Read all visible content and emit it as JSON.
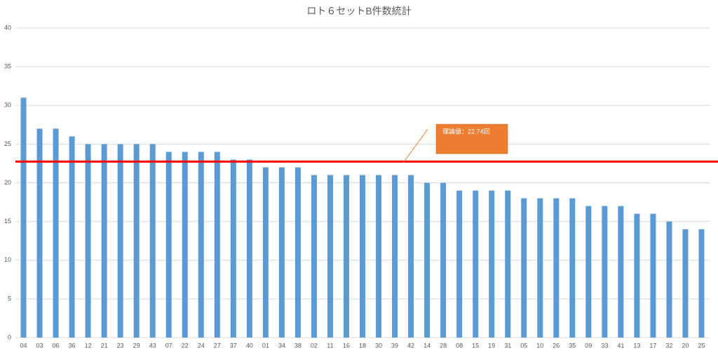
{
  "chart_data": {
    "type": "bar",
    "title": "ロト６セットB件数統計",
    "categories": [
      "04",
      "03",
      "06",
      "36",
      "12",
      "21",
      "23",
      "29",
      "43",
      "07",
      "22",
      "24",
      "27",
      "37",
      "40",
      "01",
      "34",
      "38",
      "02",
      "11",
      "16",
      "18",
      "30",
      "39",
      "42",
      "14",
      "28",
      "08",
      "15",
      "19",
      "31",
      "05",
      "10",
      "26",
      "35",
      "09",
      "33",
      "41",
      "13",
      "17",
      "32",
      "20",
      "25"
    ],
    "values": [
      31,
      27,
      27,
      26,
      25,
      25,
      25,
      25,
      25,
      24,
      24,
      24,
      24,
      23,
      23,
      22,
      22,
      22,
      21,
      21,
      21,
      21,
      21,
      21,
      21,
      20,
      20,
      19,
      19,
      19,
      19,
      18,
      18,
      18,
      18,
      17,
      17,
      17,
      16,
      16,
      15,
      14,
      14
    ],
    "color": "#5b9bd5",
    "ylim": [
      0,
      40
    ],
    "yticks": [
      0,
      5,
      10,
      15,
      20,
      25,
      30,
      35,
      40
    ],
    "grid": true,
    "reference_line": {
      "value": 22.74,
      "label": "理論値：22.74回",
      "color": "#ff0000"
    }
  }
}
